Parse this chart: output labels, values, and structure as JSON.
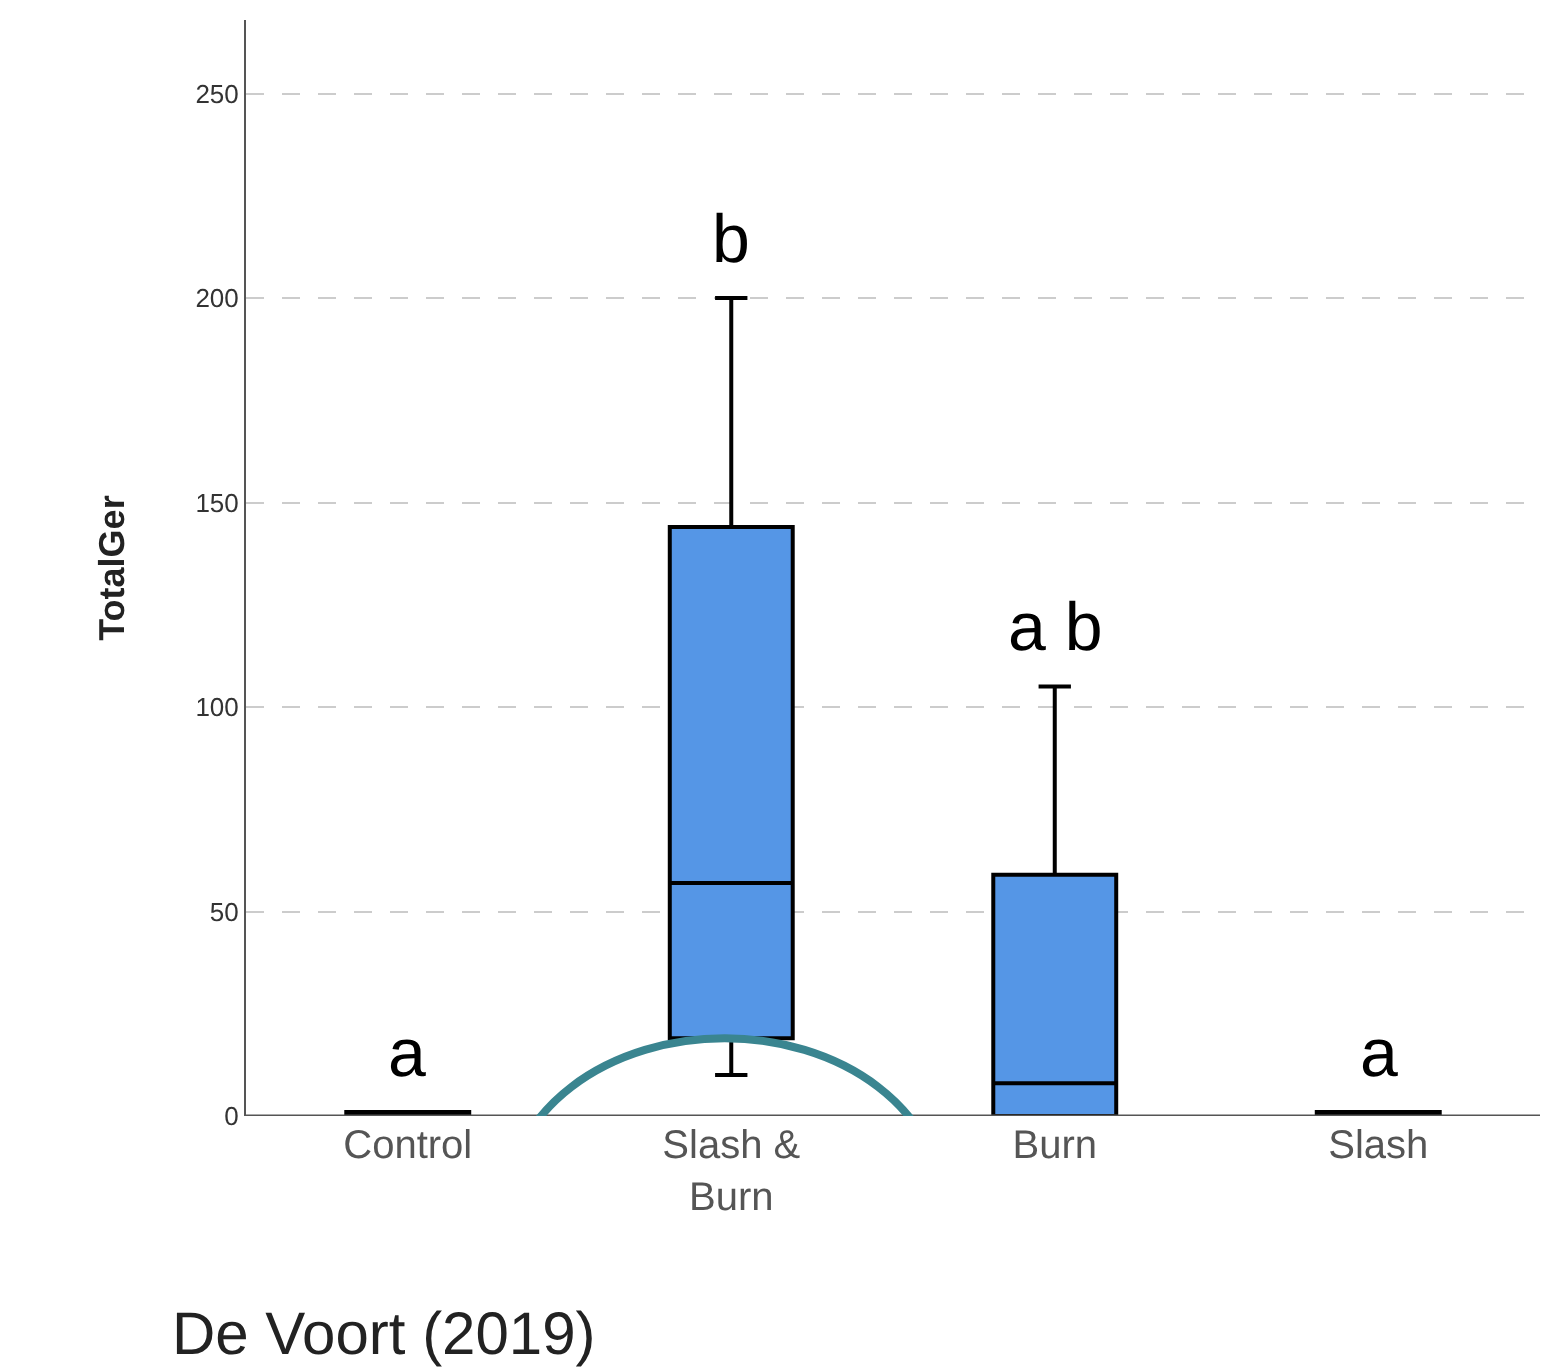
{
  "chart_data": {
    "type": "box",
    "categories": [
      "Control",
      "Slash &\nBurn",
      "Burn",
      "Slash"
    ],
    "boxes": [
      {
        "low": 0,
        "q1": 0,
        "median": 0,
        "q3": 1,
        "high": 1
      },
      {
        "low": 10,
        "q1": 19,
        "median": 57,
        "q3": 144,
        "high": 200
      },
      {
        "low": 0,
        "q1": 0,
        "median": 8,
        "q3": 59,
        "high": 105
      },
      {
        "low": 0,
        "q1": 0,
        "median": 0,
        "q3": 1,
        "high": 1
      }
    ],
    "color": "#5596e6",
    "ylabel": "TotalGer",
    "ylim": [
      0,
      268
    ],
    "yticks": [
      0,
      50,
      100,
      150,
      200,
      250
    ],
    "grid": "y",
    "annotations": [
      "a",
      "b",
      "a b",
      "a",
      "De Voort (2019)"
    ]
  }
}
